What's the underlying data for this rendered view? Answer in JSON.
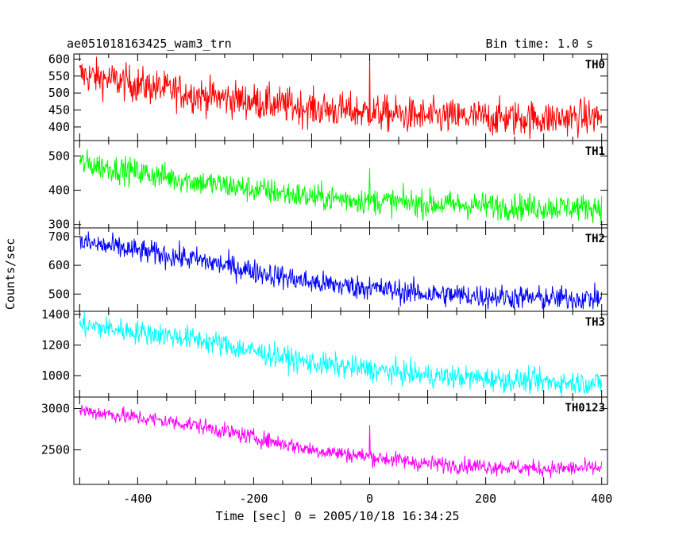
{
  "header": {
    "left": "ae051018163425_wam3_trn",
    "right": "Bin time: 1.0 s"
  },
  "chart_data": {
    "type": "line",
    "xlabel": "Time [sec] 0 = 2005/10/18 16:34:25",
    "ylabel": "Counts/sec",
    "xlim": [
      -510,
      410
    ],
    "xticks": [
      -400,
      -200,
      0,
      200,
      400
    ],
    "bin_time_s": 1.0,
    "panels": [
      {
        "name": "TH0",
        "color": "#ff0000",
        "ylim": [
          360,
          615
        ],
        "yticks": [
          400,
          450,
          500,
          550,
          600
        ],
        "trend": [
          [
            -500,
            555
          ],
          [
            -300,
            495
          ],
          [
            -100,
            455
          ],
          [
            100,
            430
          ],
          [
            300,
            425
          ],
          [
            400,
            430
          ]
        ],
        "noise": 38,
        "spike": {
          "x": 0,
          "y": 615
        }
      },
      {
        "name": "TH1",
        "color": "#00ff00",
        "ylim": [
          290,
          545
        ],
        "yticks": [
          300,
          400,
          500
        ],
        "trend": [
          [
            -500,
            480
          ],
          [
            -300,
            425
          ],
          [
            -100,
            380
          ],
          [
            100,
            360
          ],
          [
            300,
            350
          ],
          [
            400,
            350
          ]
        ],
        "noise": 28,
        "spike": {
          "x": 0,
          "y": 465
        }
      },
      {
        "name": "TH2",
        "color": "#0000ff",
        "ylim": [
          440,
          730
        ],
        "yticks": [
          500,
          600,
          700
        ],
        "trend": [
          [
            -500,
            680
          ],
          [
            -300,
            620
          ],
          [
            -100,
            540
          ],
          [
            100,
            500
          ],
          [
            300,
            485
          ],
          [
            400,
            485
          ]
        ],
        "noise": 30,
        "spike": {
          "x": 0,
          "y": 560
        }
      },
      {
        "name": "TH3",
        "color": "#00ffff",
        "ylim": [
          860,
          1420
        ],
        "yticks": [
          1000,
          1200,
          1400
        ],
        "trend": [
          [
            -500,
            1330
          ],
          [
            -300,
            1240
          ],
          [
            -100,
            1080
          ],
          [
            100,
            1000
          ],
          [
            300,
            960
          ],
          [
            400,
            950
          ]
        ],
        "noise": 55,
        "spike": {
          "x": 0,
          "y": 1080
        }
      },
      {
        "name": "TH0123",
        "color": "#ff00ff",
        "ylim": [
          2080,
          3140
        ],
        "yticks": [
          2500,
          3000
        ],
        "trend": [
          [
            -500,
            2980
          ],
          [
            -300,
            2800
          ],
          [
            -100,
            2500
          ],
          [
            100,
            2330
          ],
          [
            300,
            2270
          ],
          [
            400,
            2280
          ]
        ],
        "noise": 70,
        "spike": {
          "x": 0,
          "y": 2800
        }
      }
    ]
  }
}
